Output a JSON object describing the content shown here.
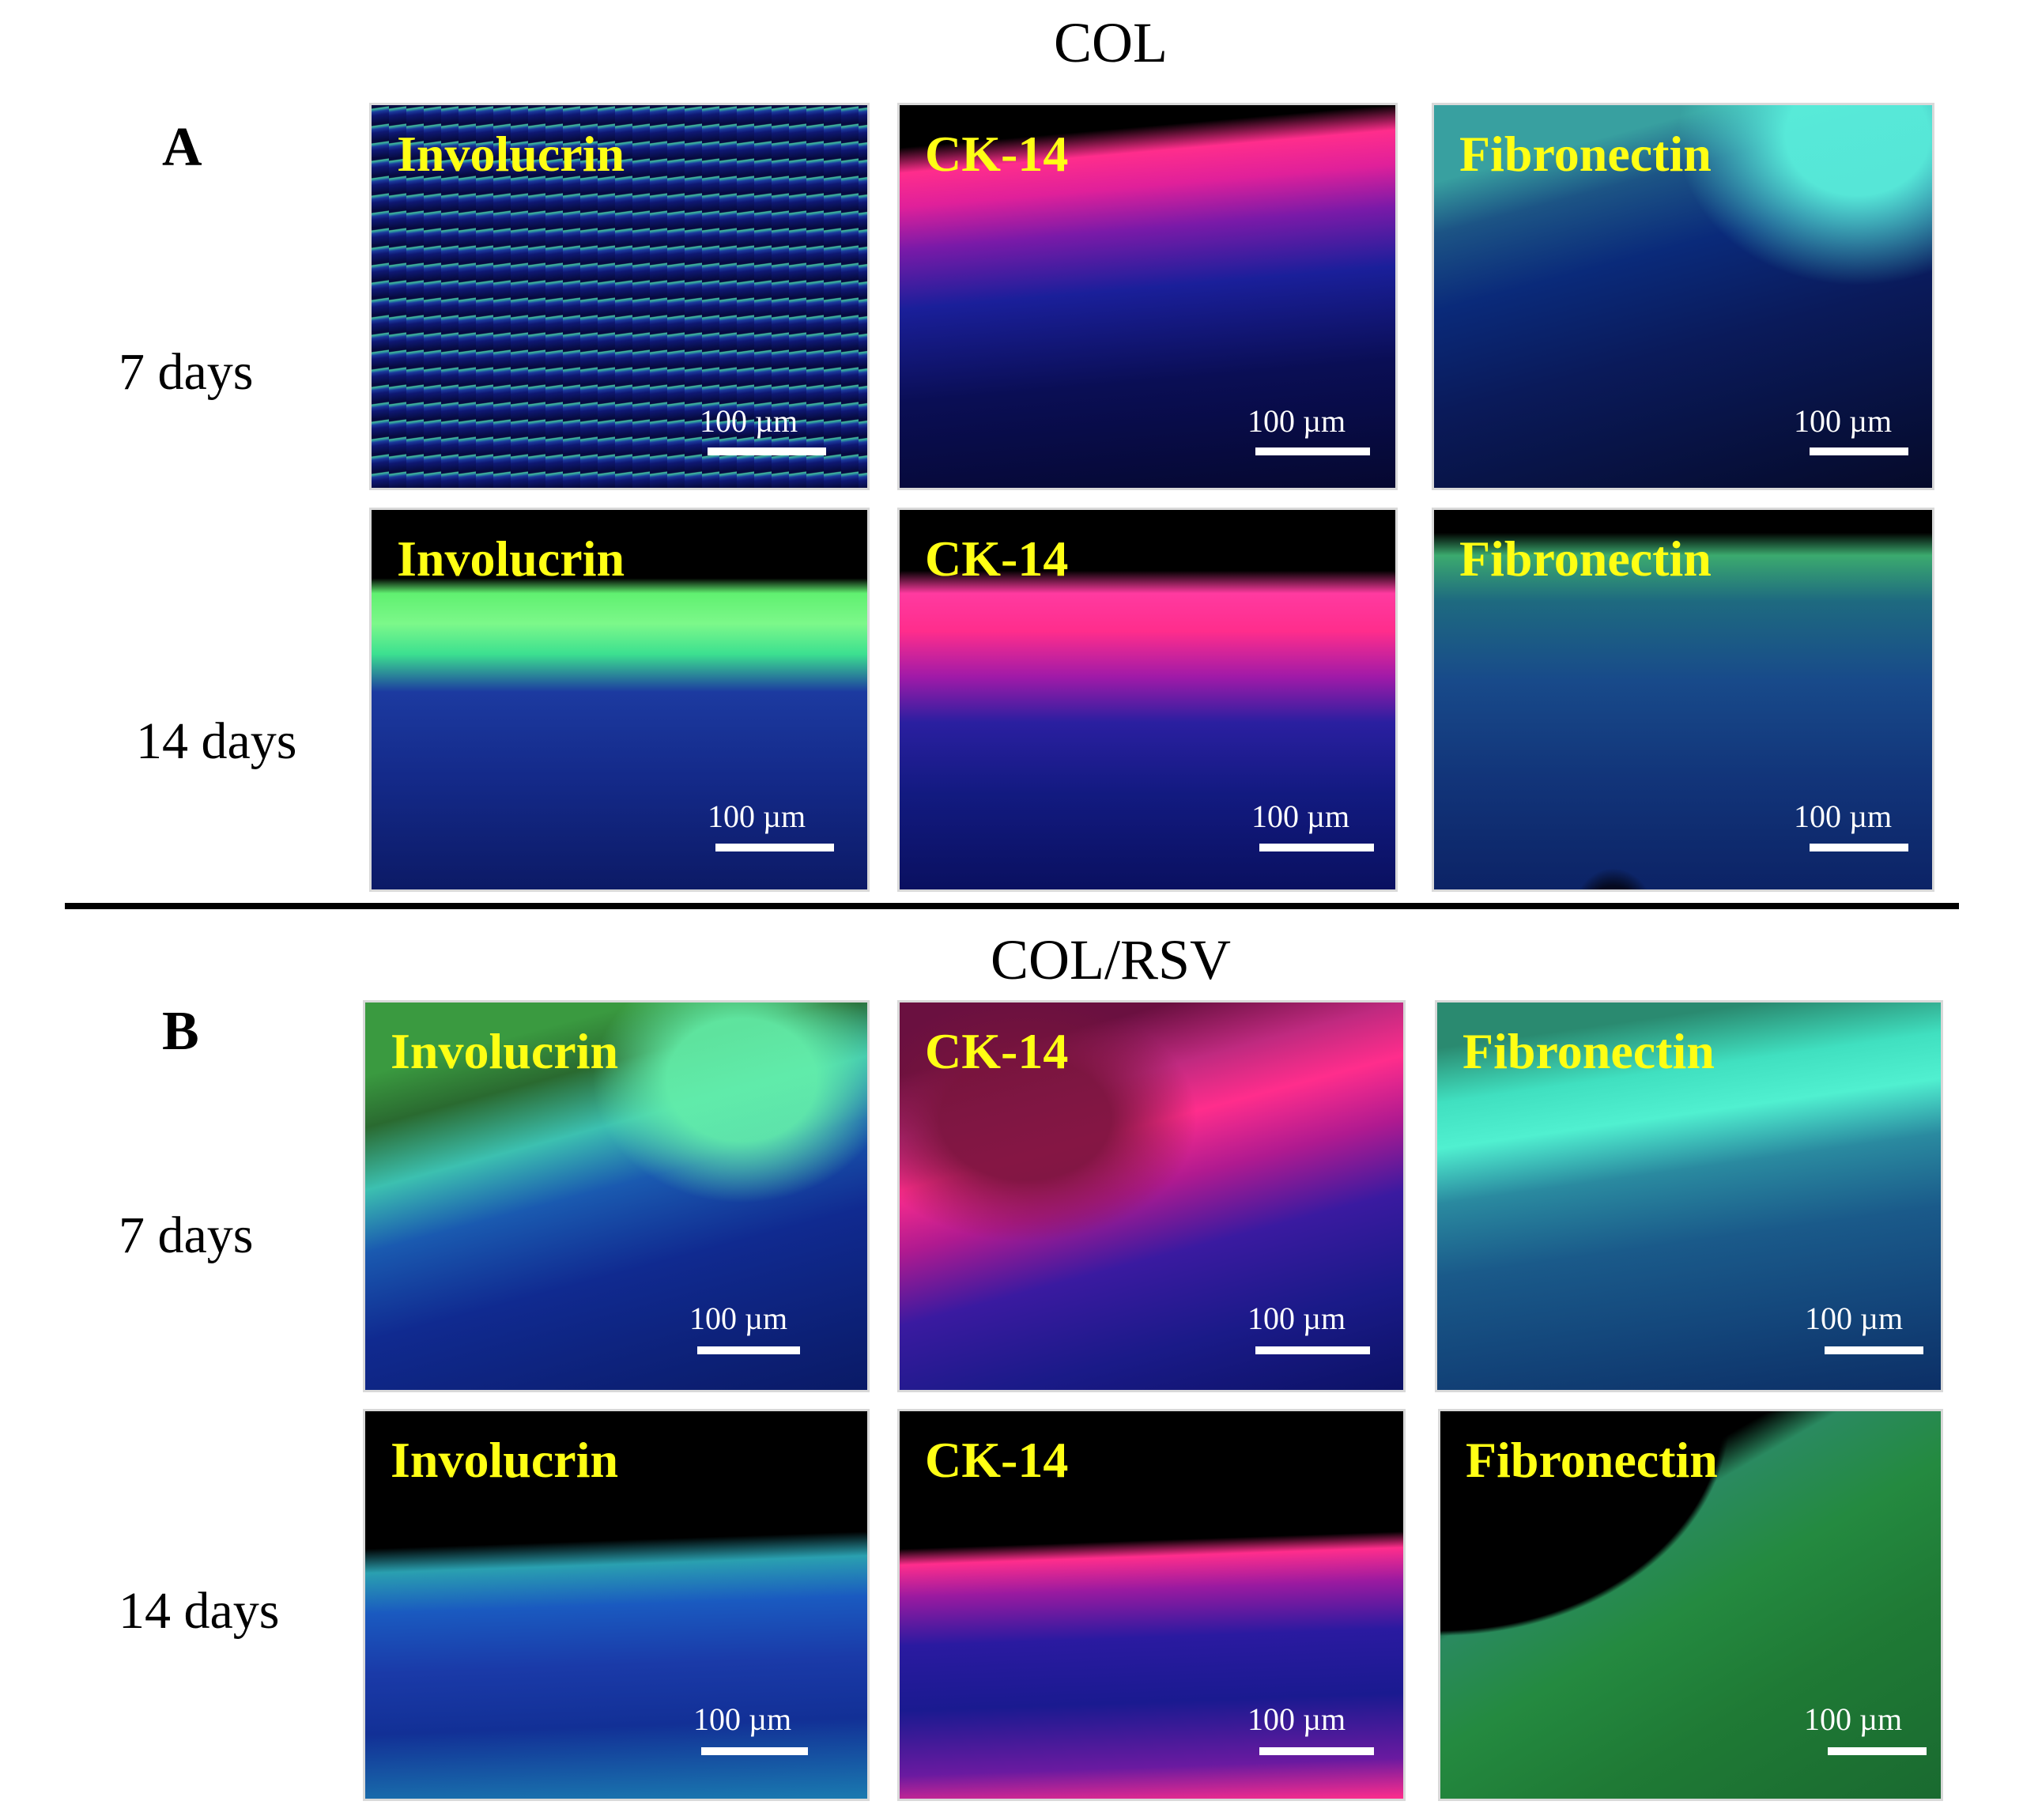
{
  "figure": {
    "section_a": {
      "title": "COL",
      "letter": "A",
      "rows": [
        {
          "label": "7 days"
        },
        {
          "label": "14 days"
        }
      ]
    },
    "section_b": {
      "title": "COL/RSV",
      "letter": "B",
      "rows": [
        {
          "label": "7 days"
        },
        {
          "label": "14 days"
        }
      ]
    },
    "stains": {
      "involucrin": "Involucrin",
      "ck14": "CK-14",
      "fibronectin": "Fibronectin"
    },
    "scale_bar": "100 µm",
    "colors": {
      "label_yellow": "#ffff14",
      "nuclei_blue": "#1a2aa8",
      "involucrin_green": "#3cf07a",
      "ck14_pink": "#ff2d8c",
      "fibronectin_cyan": "#40e0d0"
    }
  }
}
